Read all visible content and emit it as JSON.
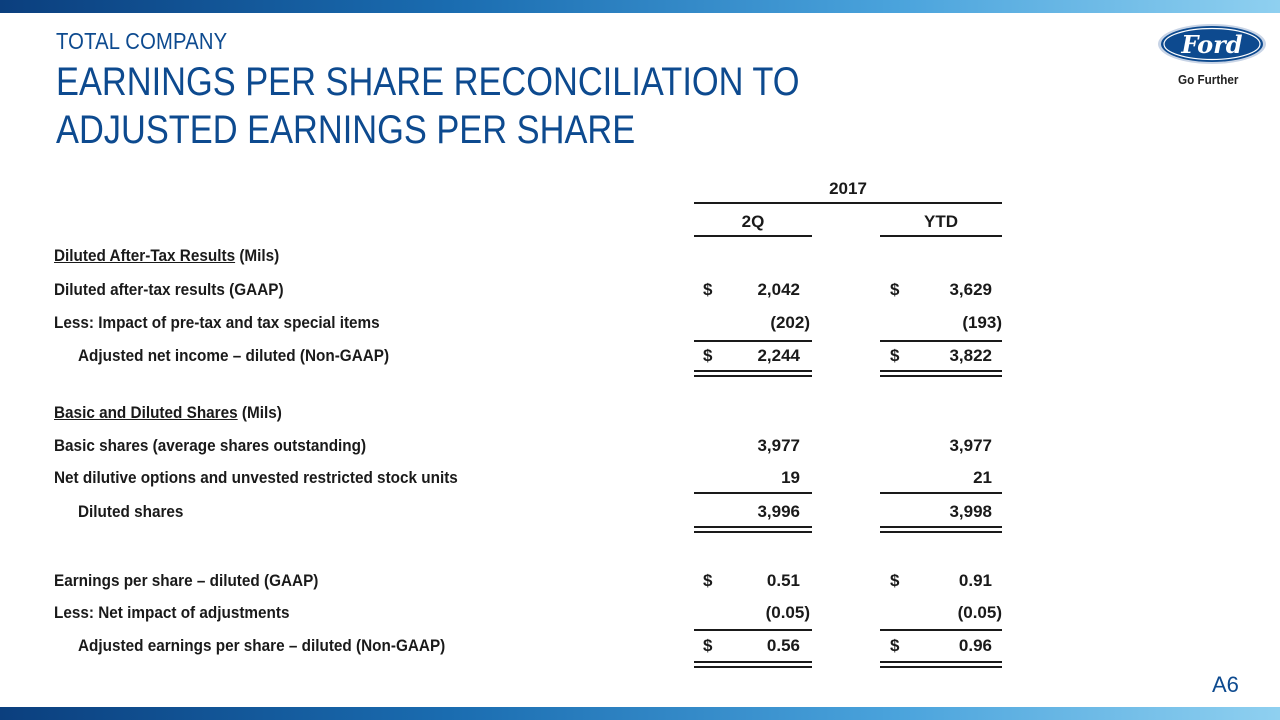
{
  "header": {
    "kicker": "TOTAL COMPANY",
    "title_line1": "EARNINGS PER SHARE RECONCILIATION TO",
    "title_line2": "ADJUSTED EARNINGS PER SHARE"
  },
  "brand": {
    "logo_text": "Ford",
    "tagline": "Go Further",
    "color": "#0d4a8f"
  },
  "table": {
    "year": "2017",
    "col1": "2Q",
    "col2": "YTD",
    "section1": {
      "underlined": "Diluted After-Tax Results",
      "rest": " (Mils)"
    },
    "row1": {
      "label": "Diluted after-tax results (GAAP)",
      "cur1": "$",
      "v1": "2,042",
      "cur2": "$",
      "v2": "3,629"
    },
    "row2": {
      "label": "Less:  Impact of pre-tax and tax special items",
      "v1": "(202)",
      "v2": "(193)"
    },
    "row3": {
      "label": "Adjusted net income – diluted (Non-GAAP)",
      "cur1": "$",
      "v1": "2,244",
      "cur2": "$",
      "v2": "3,822"
    },
    "section2": {
      "underlined": "Basic and Diluted Shares",
      "rest": " (Mils)"
    },
    "row4": {
      "label": "Basic shares (average shares outstanding)",
      "v1": "3,977",
      "v2": "3,977"
    },
    "row5": {
      "label": "Net dilutive options and unvested restricted stock units",
      "v1": "19",
      "v2": "21"
    },
    "row6": {
      "label": "Diluted shares",
      "v1": "3,996",
      "v2": "3,998"
    },
    "row7": {
      "label": "Earnings per share – diluted (GAAP)",
      "cur1": "$",
      "v1": "0.51",
      "cur2": "$",
      "v2": "0.91"
    },
    "row8": {
      "label": "Less:  Net impact of adjustments",
      "v1": "(0.05)",
      "v2": "(0.05)"
    },
    "row9": {
      "label": "Adjusted earnings per share – diluted (Non-GAAP)",
      "cur1": "$",
      "v1": "0.56",
      "cur2": "$",
      "v2": "0.96"
    }
  },
  "page_number": "A6"
}
